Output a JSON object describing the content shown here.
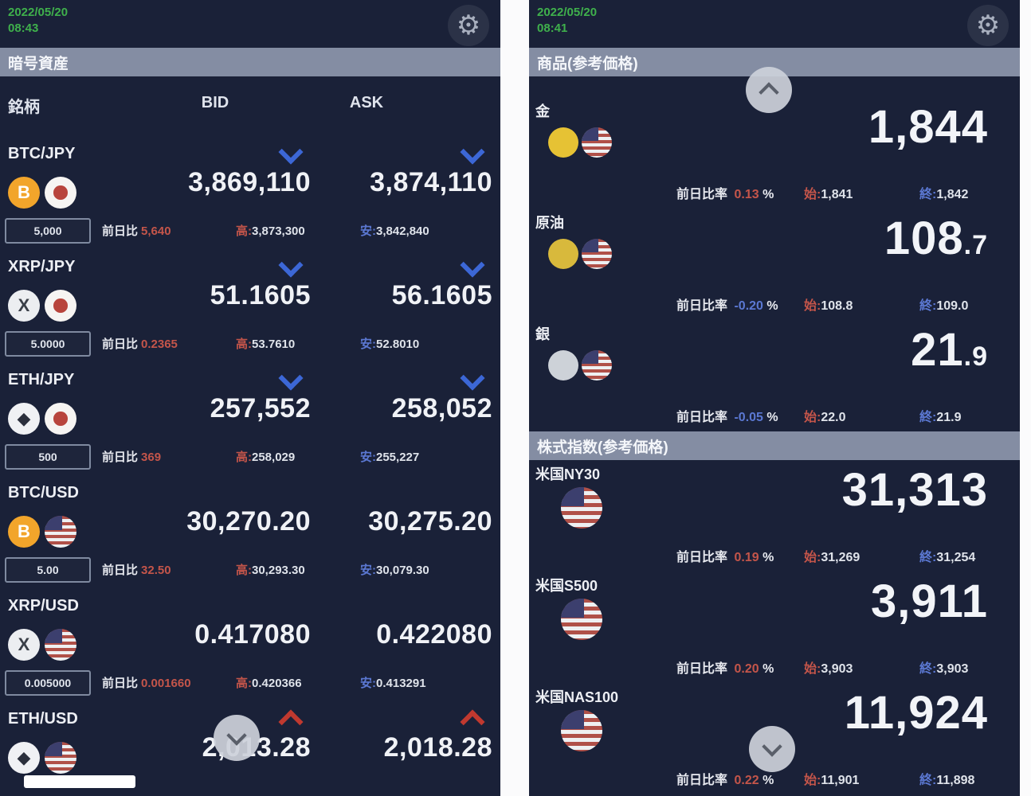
{
  "colors": {
    "panel_bg": "#1a2138",
    "section_header_bg": "#848da3",
    "green_datetime": "#3fb04c",
    "up_red": "#c4554a",
    "down_blue": "#3c67d6",
    "price_white": "#f2f4f8"
  },
  "left_panel": {
    "datetime": {
      "date": "2022/05/20",
      "time": "08:43"
    },
    "gear_icon": "gear-icon",
    "section_header": "暗号資産",
    "columns": {
      "symbol": "銘柄",
      "bid": "BID",
      "ask": "ASK"
    },
    "labels": {
      "prev": "前日比",
      "high": "高:",
      "low": "安:"
    },
    "rows": [
      {
        "symbol": "BTC/JPY",
        "base_icon": "btc",
        "base_glyph": "B",
        "quote_icon": "jp",
        "bid": "3,869,110",
        "ask": "3,874,110",
        "bid_arrow": "down",
        "ask_arrow": "down",
        "qty": "5,000",
        "prev": "5,640",
        "prev_dir": "up",
        "high": "3,873,300",
        "low": "3,842,840",
        "truncated": false
      },
      {
        "symbol": "XRP/JPY",
        "base_icon": "xrp",
        "base_glyph": "X",
        "quote_icon": "jp",
        "bid": "51.1605",
        "ask": "56.1605",
        "bid_arrow": "down",
        "ask_arrow": "down",
        "qty": "5.0000",
        "prev": "0.2365",
        "prev_dir": "up",
        "high": "53.7610",
        "low": "52.8010",
        "truncated": false
      },
      {
        "symbol": "ETH/JPY",
        "base_icon": "eth",
        "base_glyph": "◆",
        "quote_icon": "jp",
        "bid": "257,552",
        "ask": "258,052",
        "bid_arrow": "down",
        "ask_arrow": "down",
        "qty": "500",
        "prev": "369",
        "prev_dir": "up",
        "high": "258,029",
        "low": "255,227",
        "truncated": false
      },
      {
        "symbol": "BTC/USD",
        "base_icon": "btc",
        "base_glyph": "B",
        "quote_icon": "us",
        "bid": "30,270.20",
        "ask": "30,275.20",
        "bid_arrow": "none",
        "ask_arrow": "none",
        "qty": "5.00",
        "prev": "32.50",
        "prev_dir": "up",
        "high": "30,293.30",
        "low": "30,079.30",
        "truncated": false
      },
      {
        "symbol": "XRP/USD",
        "base_icon": "xrp",
        "base_glyph": "X",
        "quote_icon": "us",
        "bid": "0.417080",
        "ask": "0.422080",
        "bid_arrow": "none",
        "ask_arrow": "none",
        "qty": "0.005000",
        "prev": "0.001660",
        "prev_dir": "up",
        "high": "0.420366",
        "low": "0.413291",
        "truncated": false
      },
      {
        "symbol": "ETH/USD",
        "base_icon": "eth",
        "base_glyph": "◆",
        "quote_icon": "us",
        "bid": "2,013.28",
        "ask": "2,018.28",
        "bid_arrow": "up",
        "ask_arrow": "up",
        "qty": "",
        "prev": "",
        "prev_dir": "up",
        "high": "",
        "low": "",
        "truncated": true
      }
    ]
  },
  "right_panel": {
    "datetime": {
      "date": "2022/05/20",
      "time": "08:41"
    },
    "gear_icon": "gear-icon",
    "labels": {
      "prev": "前日比率",
      "pct": "%",
      "open": "始:",
      "close": "終:"
    },
    "sections": [
      {
        "header": "商品(参考価格)",
        "rows": [
          {
            "name": "金",
            "icons": [
              "coin-gold",
              "flag-us"
            ],
            "price_int": "1,844",
            "price_dec": "",
            "pct": "0.13",
            "pct_dir": "up",
            "open": "1,841",
            "close": "1,842"
          },
          {
            "name": "原油",
            "icons": [
              "coin-oil",
              "flag-us"
            ],
            "price_int": "108",
            "price_dec": ".7",
            "pct": "-0.20",
            "pct_dir": "down",
            "open": "108.8",
            "close": "109.0"
          },
          {
            "name": "銀",
            "icons": [
              "coin-silver",
              "flag-us"
            ],
            "price_int": "21",
            "price_dec": ".9",
            "pct": "-0.05",
            "pct_dir": "down",
            "open": "22.0",
            "close": "21.9"
          }
        ]
      },
      {
        "header": "株式指数(参考価格)",
        "rows": [
          {
            "name": "米国NY30",
            "icons": [
              "flag-us"
            ],
            "price_int": "31,313",
            "price_dec": "",
            "pct": "0.19",
            "pct_dir": "up",
            "open": "31,269",
            "close": "31,254"
          },
          {
            "name": "米国S500",
            "icons": [
              "flag-us"
            ],
            "price_int": "3,911",
            "price_dec": "",
            "pct": "0.20",
            "pct_dir": "up",
            "open": "3,903",
            "close": "3,903"
          },
          {
            "name": "米国NAS100",
            "icons": [
              "flag-us"
            ],
            "price_int": "11,924",
            "price_dec": "",
            "pct": "0.22",
            "pct_dir": "up",
            "open": "11,901",
            "close": "11,898"
          }
        ]
      }
    ]
  }
}
